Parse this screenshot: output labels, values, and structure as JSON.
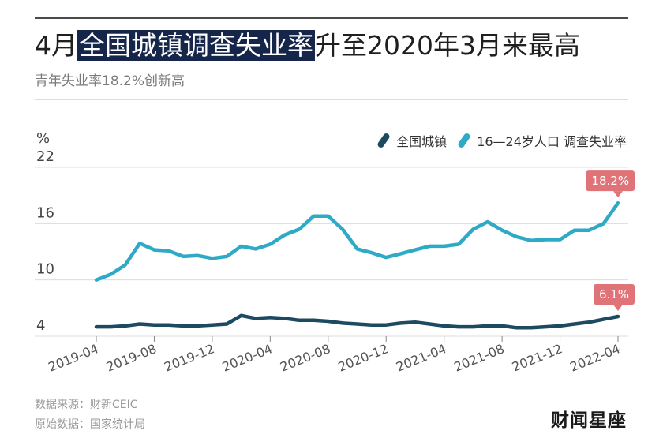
{
  "header": {
    "title_prefix": "4月",
    "title_highlight": "全国城镇调查失业率",
    "title_suffix": "升至2020年3月来最高",
    "subtitle": "青年失业率18.2%创新高"
  },
  "chart_data": {
    "type": "line",
    "unit_label": "%",
    "ylim": [
      4,
      22
    ],
    "yticks": [
      "22",
      "16",
      "10",
      "4"
    ],
    "ytick_values": [
      22,
      16,
      10,
      4
    ],
    "x": [
      "2019-04",
      "2019-05",
      "2019-06",
      "2019-07",
      "2019-08",
      "2019-09",
      "2019-10",
      "2019-11",
      "2019-12",
      "2020-01",
      "2020-02",
      "2020-03",
      "2020-04",
      "2020-05",
      "2020-06",
      "2020-07",
      "2020-08",
      "2020-09",
      "2020-10",
      "2020-11",
      "2020-12",
      "2021-01",
      "2021-02",
      "2021-03",
      "2021-04",
      "2021-05",
      "2021-06",
      "2021-07",
      "2021-08",
      "2021-09",
      "2021-10",
      "2021-11",
      "2021-12",
      "2022-01",
      "2022-02",
      "2022-03",
      "2022-04"
    ],
    "xtick_labels": [
      "2019-04",
      "2019-08",
      "2019-12",
      "2020-04",
      "2020-08",
      "2020-12",
      "2021-04",
      "2021-08",
      "2021-12",
      "2022-04"
    ],
    "xtick_index": [
      0,
      4,
      8,
      12,
      16,
      20,
      24,
      28,
      32,
      36
    ],
    "series": [
      {
        "name": "全国城镇",
        "color": "#1c4a60",
        "values": [
          5.0,
          5.0,
          5.1,
          5.3,
          5.2,
          5.2,
          5.1,
          5.1,
          5.2,
          5.3,
          6.2,
          5.9,
          6.0,
          5.9,
          5.7,
          5.7,
          5.6,
          5.4,
          5.3,
          5.2,
          5.2,
          5.4,
          5.5,
          5.3,
          5.1,
          5.0,
          5.0,
          5.1,
          5.1,
          4.9,
          4.9,
          5.0,
          5.1,
          5.3,
          5.5,
          5.8,
          6.1
        ]
      },
      {
        "name": "16—24岁人口 调查失业率",
        "color": "#2eaac7",
        "values": [
          10.0,
          10.6,
          11.6,
          13.9,
          13.2,
          13.1,
          12.5,
          12.6,
          12.3,
          12.5,
          13.6,
          13.3,
          13.8,
          14.8,
          15.4,
          16.8,
          16.8,
          15.4,
          13.3,
          12.9,
          12.4,
          12.8,
          13.2,
          13.6,
          13.6,
          13.8,
          15.4,
          16.2,
          15.3,
          14.6,
          14.2,
          14.3,
          14.3,
          15.3,
          15.3,
          16.0,
          18.2
        ]
      }
    ],
    "callouts": [
      {
        "text": "18.2%",
        "series": 1,
        "index": 36
      },
      {
        "text": "6.1%",
        "series": 0,
        "index": 36
      }
    ],
    "grid": "horizontal"
  },
  "footer": {
    "source": "数据来源：财新CEIC",
    "raw": "原始数据：国家统计局",
    "logo_text": "财闻星座"
  }
}
